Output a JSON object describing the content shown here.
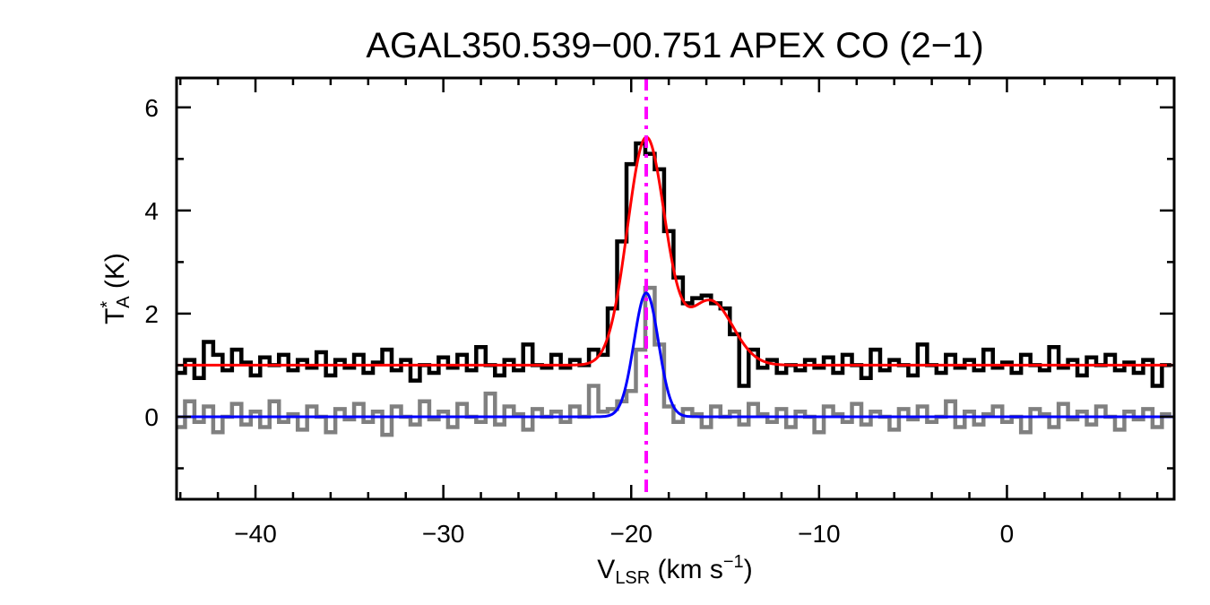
{
  "chart_data": {
    "type": "line",
    "title": "AGAL350.539−00.751   APEX CO (2−1)",
    "xlabel": {
      "main": "V",
      "sub": "LSR",
      "rest": " (km s",
      "sup": "−1",
      "end": ")"
    },
    "ylabel": {
      "main": "T",
      "sup": "*",
      "sub": "A",
      "rest": " (K)"
    },
    "xlim": [
      -44.2,
      8.9
    ],
    "ylim": [
      -1.6,
      6.57
    ],
    "xticks": [
      -40,
      -30,
      -20,
      -10,
      0
    ],
    "xtick_labels": [
      "−40",
      "−30",
      "−20",
      "−10",
      "0"
    ],
    "yticks": [
      0,
      2,
      4,
      6
    ],
    "ytick_labels": [
      "0",
      "2",
      "4",
      "6"
    ],
    "grid": false,
    "vline": {
      "x": -19.2,
      "color": "#ff00ff",
      "style": "dash-dot"
    },
    "x_start": -44.0,
    "channel_width": 0.5,
    "series": [
      {
        "color": "#000000",
        "style": "histogram",
        "values": [
          0.85,
          1.1,
          0.75,
          1.45,
          1.2,
          0.9,
          1.3,
          1.05,
          0.8,
          1.15,
          1.0,
          1.2,
          0.9,
          1.1,
          0.95,
          1.25,
          0.8,
          1.1,
          0.95,
          1.2,
          0.85,
          1.05,
          1.3,
          0.9,
          1.1,
          0.7,
          1.0,
          0.85,
          1.15,
          0.95,
          1.2,
          0.9,
          1.35,
          1.0,
          0.8,
          1.1,
          0.9,
          1.4,
          1.0,
          0.95,
          1.2,
          0.95,
          1.1,
          1.0,
          1.3,
          1.2,
          2.1,
          3.4,
          4.9,
          5.3,
          5.1,
          4.8,
          3.6,
          2.7,
          2.2,
          2.3,
          2.35,
          2.2,
          2.1,
          1.6,
          0.6,
          1.3,
          0.95,
          1.1,
          0.85,
          1.0,
          0.9,
          1.1,
          0.95,
          1.15,
          0.85,
          1.2,
          1.0,
          0.75,
          1.3,
          0.9,
          1.1,
          1.0,
          0.8,
          1.4,
          1.0,
          0.85,
          1.2,
          0.95,
          1.1,
          0.9,
          1.3,
          0.95,
          1.05,
          0.85,
          1.2,
          1.0,
          0.9,
          1.35,
          0.95,
          1.1,
          0.8,
          1.15,
          1.0,
          1.2,
          0.9,
          1.05,
          0.85,
          1.1,
          0.6,
          1.0
        ]
      },
      {
        "color": "#808080",
        "style": "histogram",
        "values": [
          -0.2,
          0.3,
          -0.1,
          0.2,
          -0.3,
          0.0,
          0.25,
          -0.15,
          0.1,
          -0.2,
          0.3,
          -0.1,
          0.05,
          -0.25,
          0.2,
          0.0,
          -0.3,
          0.15,
          -0.05,
          0.25,
          -0.1,
          0.1,
          -0.35,
          0.2,
          0.0,
          -0.15,
          0.3,
          -0.05,
          0.1,
          -0.2,
          0.25,
          0.0,
          -0.1,
          0.45,
          -0.15,
          0.2,
          0.05,
          -0.25,
          0.15,
          0.0,
          0.1,
          -0.1,
          0.2,
          0.0,
          0.6,
          0.1,
          0.15,
          0.3,
          0.5,
          1.3,
          2.5,
          1.4,
          0.2,
          -0.1,
          0.15,
          0.05,
          -0.2,
          0.2,
          0.0,
          0.1,
          -0.15,
          0.25,
          0.05,
          -0.1,
          0.15,
          -0.2,
          0.1,
          0.0,
          -0.3,
          0.2,
          0.05,
          -0.1,
          0.25,
          -0.15,
          0.1,
          0.0,
          -0.25,
          0.15,
          -0.05,
          0.2,
          -0.1,
          0.0,
          0.3,
          -0.2,
          0.1,
          -0.15,
          0.05,
          0.2,
          -0.1,
          0.0,
          -0.3,
          0.15,
          0.05,
          -0.2,
          0.25,
          -0.05,
          0.1,
          -0.15,
          0.2,
          0.0,
          -0.25,
          0.1,
          -0.05,
          0.15,
          -0.2,
          0.05
        ]
      },
      {
        "color": "#ff0000",
        "style": "gaussian-fit",
        "baseline": 1.0,
        "components": [
          {
            "amplitude": 4.4,
            "center": -19.2,
            "sigma": 1.0
          },
          {
            "amplitude": 1.25,
            "center": -15.8,
            "sigma": 1.2
          }
        ]
      },
      {
        "color": "#0000ff",
        "style": "gaussian-fit",
        "baseline": 0.0,
        "components": [
          {
            "amplitude": 2.4,
            "center": -19.2,
            "sigma": 0.65
          }
        ]
      }
    ]
  }
}
